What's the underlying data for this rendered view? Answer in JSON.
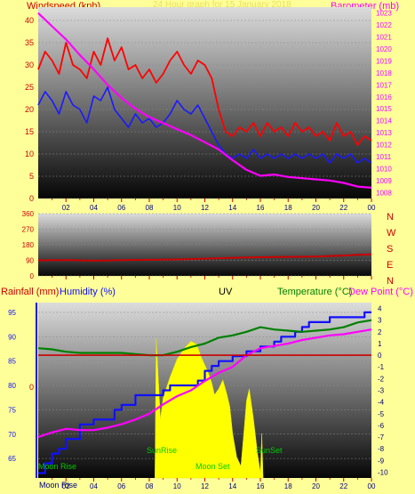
{
  "colors": {
    "background": "#ffff99",
    "wind_gust": "#ff0000",
    "wind_avg": "#1a1aff",
    "barometer": "#ff00ff",
    "direction": "#cc0000",
    "rain": "#cc0000",
    "humidity": "#1010ff",
    "temperature": "#008000",
    "dew_point": "#ff00ff",
    "uv": "#ffff00",
    "sun_label": "#00cc00"
  },
  "header": {
    "wind_label": "Windspeed (kph)",
    "date_label": "24 Hour graph for 15 January 2018",
    "baro_label": "Barometer (mb)"
  },
  "time_axis": [
    "02",
    "04",
    "06",
    "08",
    "10",
    "12",
    "14",
    "16",
    "18",
    "20",
    "22",
    "00"
  ],
  "wind_axis": [
    0,
    5,
    10,
    15,
    20,
    25,
    30,
    35,
    40
  ],
  "baro_axis": [
    1008,
    1009,
    1010,
    1011,
    1012,
    1013,
    1014,
    1015,
    1016,
    1017,
    1018,
    1019,
    1020,
    1021,
    1022,
    1023
  ],
  "dir_axis": [
    0,
    90,
    180,
    270,
    360
  ],
  "compass": [
    "N",
    "W",
    "S",
    "E",
    "N"
  ],
  "bottom_labels": {
    "rainfall": "Rainfall (mm)",
    "humidity": "Humidity (%)",
    "uv": "UV",
    "temperature": "Temperature (°C)",
    "dew_point": "Dew Point (°C)",
    "rain_zero": "0",
    "sunrise": "SunRise",
    "sunset": "SunSet",
    "moonrise": "Moon Rise",
    "moonset": "Moon Set",
    "moonrise_axis": "Moon Rise"
  },
  "hum_axis": [
    65,
    70,
    75,
    80,
    85,
    90,
    95
  ],
  "temp_axis": [
    -10,
    -9,
    -8,
    -7,
    -6,
    -5,
    -4,
    -3,
    -2,
    -1,
    0,
    1,
    2,
    3,
    4
  ],
  "chart_data": [
    {
      "type": "line",
      "title": "24 Hour graph for 15 January 2018",
      "x_unit": "hour",
      "xlim": [
        0,
        24
      ],
      "ylabel": "Windspeed (kph)",
      "ylim": [
        0,
        43
      ],
      "y2label": "Barometer (mb)",
      "y2lim": [
        1007.5,
        1023.5
      ],
      "series": [
        {
          "name": "Wind gust",
          "axis": "left",
          "x": [
            0,
            0.5,
            1,
            1.5,
            2,
            2.5,
            3,
            3.5,
            4,
            4.5,
            5,
            5.5,
            6,
            6.5,
            7,
            7.5,
            8,
            8.5,
            9,
            9.5,
            10,
            10.5,
            11,
            11.5,
            12,
            12.5,
            13,
            13.5,
            14,
            14.5,
            15,
            15.5,
            16,
            16.5,
            17,
            17.5,
            18,
            18.5,
            19,
            19.5,
            20,
            20.5,
            21,
            21.5,
            22,
            22.5,
            23,
            23.5,
            24
          ],
          "values": [
            29,
            33,
            31,
            28,
            35,
            30,
            29,
            27,
            33,
            30,
            36,
            31,
            34,
            29,
            30,
            27,
            29,
            26,
            28,
            31,
            33,
            30,
            28,
            31,
            30,
            27,
            20,
            15,
            14,
            16,
            15,
            17,
            14,
            17,
            15,
            16,
            14,
            17,
            15,
            16,
            14,
            15,
            13,
            17,
            14,
            15,
            12,
            14,
            13
          ]
        },
        {
          "name": "Wind average",
          "axis": "left",
          "x": [
            0,
            0.5,
            1,
            1.5,
            2,
            2.5,
            3,
            3.5,
            4,
            4.5,
            5,
            5.5,
            6,
            6.5,
            7,
            7.5,
            8,
            8.5,
            9,
            9.5,
            10,
            10.5,
            11,
            11.5,
            12,
            12.5,
            13,
            13.5,
            14,
            14.5,
            15,
            15.5,
            16,
            16.5,
            17,
            17.5,
            18,
            18.5,
            19,
            19.5,
            20,
            20.5,
            21,
            21.5,
            22,
            22.5,
            23,
            23.5,
            24
          ],
          "values": [
            21,
            24,
            22,
            19,
            24,
            21,
            20,
            17,
            23,
            22,
            25,
            20,
            18,
            16,
            19,
            17,
            18,
            16,
            17,
            19,
            22,
            20,
            19,
            21,
            18,
            15,
            12,
            10,
            9,
            10,
            9,
            11,
            9,
            10,
            9,
            10,
            9,
            10,
            9,
            10,
            9,
            10,
            8,
            10,
            9,
            10,
            8,
            9,
            8
          ]
        },
        {
          "name": "Barometer",
          "axis": "right",
          "x": [
            0,
            1,
            2,
            3,
            4,
            5,
            6,
            7,
            8,
            9,
            10,
            11,
            12,
            13,
            14,
            15,
            16,
            17,
            18,
            19,
            20,
            21,
            22,
            23,
            24
          ],
          "values": [
            1023.0,
            1021.9,
            1020.8,
            1019.5,
            1018.3,
            1017.0,
            1015.9,
            1015.0,
            1014.3,
            1013.8,
            1013.3,
            1012.8,
            1012.2,
            1011.6,
            1010.7,
            1009.9,
            1009.4,
            1009.5,
            1009.3,
            1009.2,
            1009.1,
            1009.0,
            1008.8,
            1008.5,
            1008.4
          ]
        }
      ]
    },
    {
      "type": "line",
      "x_unit": "hour",
      "xlim": [
        0,
        24
      ],
      "ylim": [
        0,
        360
      ],
      "series": [
        {
          "name": "Wind direction",
          "x": [
            0,
            2,
            4,
            6,
            8,
            10,
            12,
            14,
            16,
            18,
            20,
            22,
            23,
            24
          ],
          "values": [
            90,
            92,
            88,
            91,
            93,
            95,
            100,
            105,
            108,
            110,
            112,
            118,
            122,
            125
          ]
        }
      ]
    },
    {
      "type": "line",
      "x_unit": "hour",
      "xlim": [
        0,
        24
      ],
      "ylabel": "Humidity (%)",
      "ylim": [
        61,
        97
      ],
      "y2label": "Temperature (°C)",
      "y2lim": [
        -10.5,
        4.5
      ],
      "series": [
        {
          "name": "Humidity",
          "axis": "left",
          "x": [
            0,
            0.5,
            1,
            1.5,
            2,
            3,
            3.5,
            4,
            5,
            5.5,
            6,
            6.5,
            7,
            7.5,
            8,
            9,
            9.5,
            10,
            10.5,
            11,
            11.5,
            12,
            12.5,
            13,
            14,
            14.5,
            15,
            16,
            17,
            17.5,
            18,
            18.5,
            19,
            19.5,
            20,
            21,
            22,
            23,
            23.5,
            24
          ],
          "values": [
            62,
            64,
            66,
            67,
            69,
            72,
            72,
            73,
            73,
            75,
            76,
            76,
            78,
            78,
            78,
            79,
            80,
            80,
            80,
            80,
            81,
            83,
            84,
            85,
            86,
            86,
            87,
            88,
            89,
            90,
            90,
            91,
            92,
            93,
            93,
            94,
            94,
            94,
            95,
            95
          ]
        },
        {
          "name": "Temperature",
          "axis": "right",
          "x": [
            0,
            1,
            2,
            3,
            4,
            5,
            6,
            7,
            8,
            9,
            10,
            11,
            12,
            13,
            14,
            15,
            16,
            17,
            18,
            19,
            20,
            21,
            22,
            23,
            24
          ],
          "values": [
            0.6,
            0.5,
            0.3,
            0.2,
            0.2,
            0.2,
            0.2,
            0.1,
            0.0,
            0.0,
            0.3,
            0.7,
            1.0,
            1.5,
            1.7,
            2.0,
            2.4,
            2.2,
            2.1,
            2.0,
            2.1,
            2.2,
            2.4,
            2.8,
            3.0
          ]
        },
        {
          "name": "Dew point",
          "axis": "right",
          "x": [
            0,
            1,
            2,
            3,
            4,
            5,
            6,
            7,
            8,
            9,
            10,
            11,
            12,
            13,
            14,
            15,
            16,
            17,
            18,
            19,
            20,
            21,
            22,
            23,
            24
          ],
          "values": [
            -7.0,
            -6.6,
            -6.3,
            -6.4,
            -6.4,
            -6.2,
            -5.9,
            -5.5,
            -5.0,
            -4.2,
            -3.5,
            -3.0,
            -2.2,
            -1.5,
            -1.0,
            0.0,
            0.6,
            0.8,
            1.0,
            1.3,
            1.5,
            1.7,
            1.8,
            2.0,
            2.2
          ]
        },
        {
          "name": "Rainfall",
          "axis": "rain",
          "x": [
            0,
            24
          ],
          "values": [
            0,
            0
          ]
        }
      ]
    },
    {
      "type": "area",
      "x_unit": "hour",
      "xlim": [
        0,
        24
      ],
      "ylabel": "UV",
      "series": [
        {
          "name": "UV",
          "x": [
            8.4,
            8.5,
            8.8,
            9,
            9.5,
            10,
            10.3,
            10.6,
            11,
            11.4,
            11.8,
            12.2,
            12.5,
            12.7,
            13,
            13.3,
            13.6,
            13.8,
            14,
            14.3,
            14.6,
            14.8,
            15,
            15.2,
            15.5,
            15.8,
            16,
            16.1,
            16.2
          ],
          "values": [
            0,
            4.7,
            2.0,
            2.7,
            3.4,
            4.0,
            4.2,
            4.4,
            4.6,
            4.5,
            4.0,
            3.6,
            3.2,
            2.8,
            3.0,
            3.3,
            2.8,
            2.4,
            1.5,
            0.7,
            0.4,
            1.5,
            2.6,
            3.0,
            2.0,
            0.8,
            0.2,
            1.5,
            0
          ]
        }
      ]
    }
  ]
}
